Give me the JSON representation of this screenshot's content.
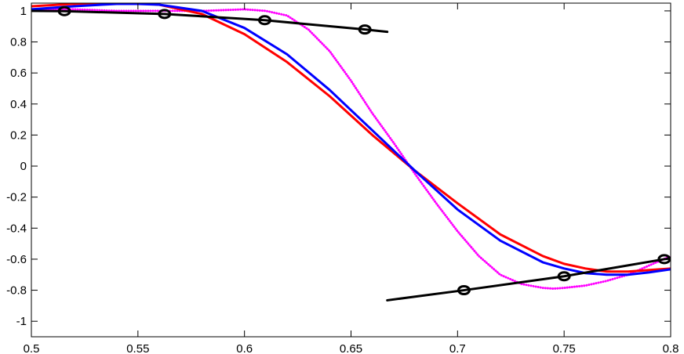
{
  "chart_data": {
    "type": "line",
    "title": "",
    "xlabel": "",
    "ylabel": "",
    "xlim": [
      0.5,
      0.8
    ],
    "ylim": [
      -1.1,
      1.05
    ],
    "grid": false,
    "legend": "none",
    "x_ticks": [
      "0.5",
      "0.55",
      "0.6",
      "0.65",
      "0.7",
      "0.75",
      "0.8"
    ],
    "x_tick_values": [
      0.5,
      0.55,
      0.6,
      0.65,
      0.7,
      0.75,
      0.8
    ],
    "y_ticks": [
      "1",
      "0.8",
      "0.6",
      "0.4",
      "0.2",
      "0",
      "-0.2",
      "-0.4",
      "-0.6",
      "-0.8",
      "-1"
    ],
    "y_tick_values": [
      1,
      0.8,
      0.6,
      0.4,
      0.2,
      0,
      -0.2,
      -0.4,
      -0.6,
      -0.8,
      -1
    ],
    "series": [
      {
        "color": "#ff00ff",
        "style": "dotted",
        "x": [
          0.5,
          0.52,
          0.54,
          0.56,
          0.58,
          0.6,
          0.61,
          0.62,
          0.63,
          0.64,
          0.65,
          0.66,
          0.67,
          0.68,
          0.69,
          0.7,
          0.71,
          0.72,
          0.73,
          0.74,
          0.745,
          0.75,
          0.76,
          0.77,
          0.78,
          0.79,
          0.8
        ],
        "y": [
          1.01,
          1.01,
          1.0,
          1.0,
          1.0,
          1.01,
          1.0,
          0.97,
          0.88,
          0.74,
          0.55,
          0.34,
          0.15,
          -0.05,
          -0.24,
          -0.42,
          -0.58,
          -0.7,
          -0.76,
          -0.785,
          -0.79,
          -0.785,
          -0.77,
          -0.74,
          -0.7,
          -0.64,
          -0.58
        ]
      },
      {
        "color": "#ff0000",
        "style": "solid",
        "x": [
          0.5,
          0.52,
          0.54,
          0.55,
          0.56,
          0.58,
          0.6,
          0.62,
          0.64,
          0.66,
          0.68,
          0.7,
          0.72,
          0.74,
          0.75,
          0.76,
          0.77,
          0.78,
          0.79,
          0.8
        ],
        "y": [
          1.03,
          1.045,
          1.05,
          1.05,
          1.04,
          0.98,
          0.85,
          0.67,
          0.45,
          0.2,
          -0.03,
          -0.24,
          -0.44,
          -0.58,
          -0.63,
          -0.66,
          -0.68,
          -0.68,
          -0.67,
          -0.66
        ]
      },
      {
        "color": "#0000ff",
        "style": "solid",
        "x": [
          0.5,
          0.52,
          0.54,
          0.55,
          0.56,
          0.58,
          0.6,
          0.62,
          0.64,
          0.66,
          0.68,
          0.7,
          0.72,
          0.74,
          0.75,
          0.76,
          0.77,
          0.78,
          0.79,
          0.8
        ],
        "y": [
          1.01,
          1.03,
          1.045,
          1.045,
          1.04,
          1.0,
          0.89,
          0.72,
          0.49,
          0.23,
          -0.03,
          -0.28,
          -0.48,
          -0.62,
          -0.66,
          -0.69,
          -0.7,
          -0.7,
          -0.685,
          -0.665
        ]
      },
      {
        "color": "#000000",
        "style": "solid-markers",
        "x": [
          0.5,
          0.5155,
          0.5625,
          0.6095,
          0.6565,
          0.667
        ],
        "y": [
          1.0,
          0.998,
          0.98,
          0.94,
          0.88,
          0.865
        ],
        "markers_x": [
          0.5155,
          0.5625,
          0.6095,
          0.6565
        ],
        "markers_y": [
          0.998,
          0.98,
          0.94,
          0.88
        ]
      },
      {
        "color": "#000000",
        "style": "solid-markers",
        "x": [
          0.667,
          0.703,
          0.75,
          0.797,
          0.8
        ],
        "y": [
          -0.865,
          -0.8,
          -0.71,
          -0.6,
          -0.595
        ],
        "markers_x": [
          0.703,
          0.75,
          0.797
        ],
        "markers_y": [
          -0.8,
          -0.71,
          -0.6
        ]
      }
    ]
  }
}
